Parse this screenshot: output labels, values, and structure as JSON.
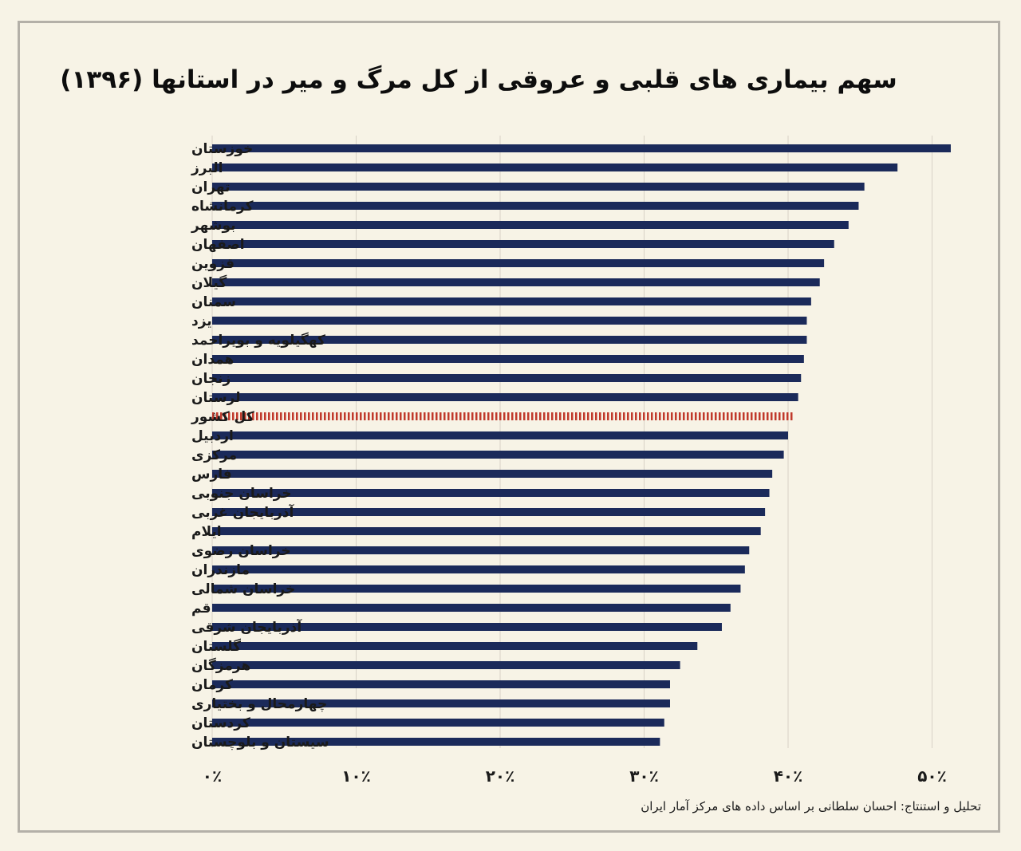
{
  "chart_data": {
    "type": "bar",
    "orientation": "horizontal",
    "title": "سهم بیماری های قلبی و عروقی از کل مرگ و میر در استانها (۱۳۹۶)",
    "xlim": [
      0,
      55
    ],
    "x_ticks": [
      0,
      10,
      20,
      30,
      40,
      50
    ],
    "x_tick_labels": [
      "۰٪",
      "۱۰٪",
      "۲۰٪",
      "۳۰٪",
      "۴۰٪",
      "۵۰٪"
    ],
    "grid": "vertical",
    "categories": [
      "خوزستان",
      "البرز",
      "تهران",
      "کرمانشاه",
      "بوشهر",
      "اصفهان",
      "قزوین",
      "گیلان",
      "سمنان",
      "یزد",
      "کهگیلویه و بویراحمد",
      "همدان",
      "زنجان",
      "لرستان",
      "کل کشور",
      "اردبیل",
      "مرکزی",
      "فارس",
      "خراسان جنوبی",
      "آذربایجان غربی",
      "ایلام",
      "خراسان رضوی",
      "مازندران",
      "خراسان شمالی",
      "قم",
      "آذربایجان شرقی",
      "گلستان",
      "هرمزگان",
      "کرمان",
      "چهارمحال و بختیاری",
      "کردستان",
      "سیستان و بلوچستان"
    ],
    "values": [
      51.3,
      47.6,
      45.3,
      44.9,
      44.2,
      43.2,
      42.5,
      42.2,
      41.6,
      41.3,
      41.3,
      41.1,
      40.9,
      40.7,
      40.4,
      40.0,
      39.7,
      38.9,
      38.7,
      38.4,
      38.1,
      37.3,
      37.0,
      36.7,
      36.0,
      35.4,
      33.7,
      32.5,
      31.8,
      31.8,
      31.4,
      31.1
    ],
    "highlight_index": 14,
    "colors": {
      "bar": "#1b2a5a",
      "highlight": "#c0392b",
      "grid": "#d8d2c6"
    }
  },
  "source_note": "تحلیل و استنتاج: احسان سلطانی بر اساس داده های مرکز آمار ایران"
}
